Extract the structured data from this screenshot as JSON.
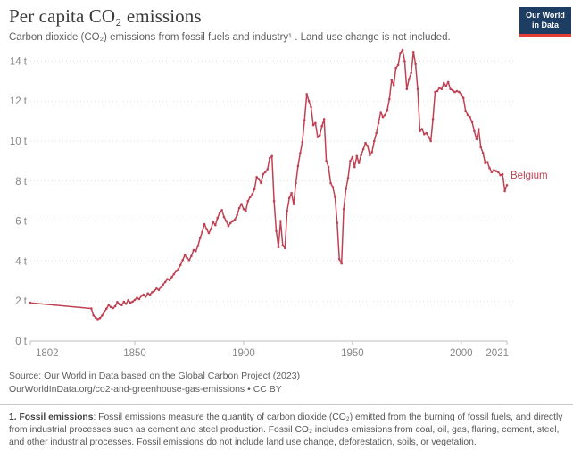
{
  "header": {
    "title": "Per capita CO₂ emissions",
    "subtitle": "Carbon dioxide (CO₂) emissions from fossil fuels and industry¹ . Land use change is not included."
  },
  "logo": {
    "line1": "Our World",
    "line2": "in Data"
  },
  "chart_data": {
    "type": "line",
    "title": "Per capita CO₂ emissions",
    "entity_label": "Belgium",
    "unit": "t",
    "xlabel": "",
    "ylabel": "",
    "xlim": [
      1802,
      2021
    ],
    "ylim": [
      0,
      14
    ],
    "yticks": [
      0,
      2,
      4,
      6,
      8,
      10,
      12,
      14
    ],
    "ytick_suffix": " t",
    "xticks": [
      1802,
      1850,
      1900,
      1950,
      2000,
      2021
    ],
    "grid": "dotted-horizontal",
    "legend_position": "end-of-line-label",
    "series": [
      {
        "name": "Belgium",
        "color": "#bf4254",
        "points": [
          [
            1802,
            1.91
          ],
          [
            1830,
            1.63
          ],
          [
            1831,
            1.28
          ],
          [
            1832,
            1.17
          ],
          [
            1833,
            1.1
          ],
          [
            1834,
            1.15
          ],
          [
            1835,
            1.28
          ],
          [
            1836,
            1.46
          ],
          [
            1837,
            1.62
          ],
          [
            1838,
            1.8
          ],
          [
            1839,
            1.7
          ],
          [
            1840,
            1.65
          ],
          [
            1841,
            1.74
          ],
          [
            1842,
            1.95
          ],
          [
            1843,
            1.84
          ],
          [
            1844,
            1.8
          ],
          [
            1845,
            1.96
          ],
          [
            1846,
            1.86
          ],
          [
            1847,
            2.04
          ],
          [
            1848,
            1.92
          ],
          [
            1849,
            1.97
          ],
          [
            1850,
            2.06
          ],
          [
            1851,
            2.16
          ],
          [
            1852,
            2.1
          ],
          [
            1853,
            2.26
          ],
          [
            1854,
            2.32
          ],
          [
            1855,
            2.22
          ],
          [
            1856,
            2.38
          ],
          [
            1857,
            2.32
          ],
          [
            1858,
            2.44
          ],
          [
            1859,
            2.52
          ],
          [
            1860,
            2.62
          ],
          [
            1861,
            2.56
          ],
          [
            1862,
            2.7
          ],
          [
            1863,
            2.82
          ],
          [
            1864,
            2.95
          ],
          [
            1865,
            3.1
          ],
          [
            1866,
            3.05
          ],
          [
            1867,
            3.2
          ],
          [
            1868,
            3.35
          ],
          [
            1869,
            3.5
          ],
          [
            1870,
            3.6
          ],
          [
            1871,
            3.8
          ],
          [
            1872,
            4.05
          ],
          [
            1873,
            4.3
          ],
          [
            1874,
            4.15
          ],
          [
            1875,
            4.05
          ],
          [
            1876,
            4.25
          ],
          [
            1877,
            4.55
          ],
          [
            1878,
            4.5
          ],
          [
            1879,
            4.75
          ],
          [
            1880,
            5.15
          ],
          [
            1881,
            5.45
          ],
          [
            1882,
            5.85
          ],
          [
            1883,
            5.6
          ],
          [
            1884,
            5.4
          ],
          [
            1885,
            5.6
          ],
          [
            1886,
            5.95
          ],
          [
            1887,
            5.8
          ],
          [
            1888,
            6.15
          ],
          [
            1889,
            6.4
          ],
          [
            1890,
            6.55
          ],
          [
            1891,
            6.2
          ],
          [
            1892,
            6.0
          ],
          [
            1893,
            5.75
          ],
          [
            1894,
            5.9
          ],
          [
            1895,
            6.0
          ],
          [
            1896,
            6.08
          ],
          [
            1897,
            6.3
          ],
          [
            1898,
            6.65
          ],
          [
            1899,
            6.85
          ],
          [
            1900,
            6.6
          ],
          [
            1901,
            6.5
          ],
          [
            1902,
            7.0
          ],
          [
            1903,
            7.2
          ],
          [
            1904,
            7.35
          ],
          [
            1905,
            7.6
          ],
          [
            1906,
            8.2
          ],
          [
            1907,
            8.1
          ],
          [
            1908,
            7.9
          ],
          [
            1909,
            8.35
          ],
          [
            1910,
            8.45
          ],
          [
            1911,
            8.6
          ],
          [
            1912,
            9.15
          ],
          [
            1913,
            9.25
          ],
          [
            1914,
            7.0
          ],
          [
            1915,
            5.5
          ],
          [
            1916,
            4.7
          ],
          [
            1917,
            6.0
          ],
          [
            1918,
            4.78
          ],
          [
            1919,
            4.65
          ],
          [
            1920,
            6.5
          ],
          [
            1921,
            7.15
          ],
          [
            1922,
            7.4
          ],
          [
            1923,
            6.85
          ],
          [
            1924,
            7.9
          ],
          [
            1925,
            8.75
          ],
          [
            1926,
            9.4
          ],
          [
            1927,
            9.95
          ],
          [
            1928,
            11.05
          ],
          [
            1929,
            12.35
          ],
          [
            1930,
            12.0
          ],
          [
            1931,
            11.7
          ],
          [
            1932,
            10.8
          ],
          [
            1933,
            10.9
          ],
          [
            1934,
            10.2
          ],
          [
            1935,
            10.3
          ],
          [
            1936,
            10.75
          ],
          [
            1937,
            11.1
          ],
          [
            1938,
            9.0
          ],
          [
            1939,
            8.7
          ],
          [
            1940,
            7.9
          ],
          [
            1941,
            7.7
          ],
          [
            1942,
            7.2
          ],
          [
            1943,
            5.9
          ],
          [
            1944,
            4.1
          ],
          [
            1945,
            3.88
          ],
          [
            1946,
            6.6
          ],
          [
            1947,
            7.6
          ],
          [
            1948,
            8.15
          ],
          [
            1949,
            9.0
          ],
          [
            1950,
            9.2
          ],
          [
            1951,
            8.7
          ],
          [
            1952,
            9.25
          ],
          [
            1953,
            8.9
          ],
          [
            1954,
            9.3
          ],
          [
            1955,
            9.6
          ],
          [
            1956,
            9.9
          ],
          [
            1957,
            9.75
          ],
          [
            1958,
            9.3
          ],
          [
            1959,
            9.45
          ],
          [
            1960,
            10.0
          ],
          [
            1961,
            10.4
          ],
          [
            1962,
            10.9
          ],
          [
            1963,
            11.45
          ],
          [
            1964,
            11.2
          ],
          [
            1965,
            11.3
          ],
          [
            1966,
            11.55
          ],
          [
            1967,
            12.1
          ],
          [
            1968,
            13.05
          ],
          [
            1969,
            12.8
          ],
          [
            1970,
            13.65
          ],
          [
            1971,
            13.8
          ],
          [
            1972,
            14.4
          ],
          [
            1973,
            14.55
          ],
          [
            1974,
            14.0
          ],
          [
            1975,
            12.6
          ],
          [
            1976,
            13.1
          ],
          [
            1977,
            13.4
          ],
          [
            1978,
            14.45
          ],
          [
            1979,
            13.85
          ],
          [
            1980,
            12.6
          ],
          [
            1981,
            10.5
          ],
          [
            1982,
            10.6
          ],
          [
            1983,
            10.35
          ],
          [
            1984,
            10.4
          ],
          [
            1985,
            10.2
          ],
          [
            1986,
            10.0
          ],
          [
            1987,
            11.1
          ],
          [
            1988,
            12.45
          ],
          [
            1989,
            12.5
          ],
          [
            1990,
            12.65
          ],
          [
            1991,
            12.6
          ],
          [
            1992,
            12.9
          ],
          [
            1993,
            12.75
          ],
          [
            1994,
            12.95
          ],
          [
            1995,
            12.6
          ],
          [
            1996,
            12.55
          ],
          [
            1997,
            12.45
          ],
          [
            1998,
            12.5
          ],
          [
            1999,
            12.45
          ],
          [
            2000,
            12.35
          ],
          [
            2001,
            12.15
          ],
          [
            2002,
            11.5
          ],
          [
            2003,
            11.3
          ],
          [
            2004,
            11.2
          ],
          [
            2005,
            10.95
          ],
          [
            2006,
            10.5
          ],
          [
            2007,
            10.1
          ],
          [
            2008,
            10.6
          ],
          [
            2009,
            9.7
          ],
          [
            2010,
            9.4
          ],
          [
            2011,
            8.9
          ],
          [
            2012,
            8.95
          ],
          [
            2013,
            8.65
          ],
          [
            2014,
            8.45
          ],
          [
            2015,
            8.55
          ],
          [
            2016,
            8.5
          ],
          [
            2017,
            8.45
          ],
          [
            2018,
            8.3
          ],
          [
            2019,
            8.35
          ],
          [
            2020,
            7.5
          ],
          [
            2021,
            7.8
          ]
        ]
      }
    ]
  },
  "footer": {
    "source": "Source: Our World in Data based on the Global Carbon Project (2023)",
    "url": "OurWorldInData.org/co2-and-greenhouse-gas-emissions",
    "license": " • CC BY"
  },
  "note": {
    "label": "1. Fossil emissions",
    "text": ": Fossil emissions measure the quantity of carbon dioxide (CO₂) emitted from the burning of fossil fuels, and directly from industrial processes such as cement and steel production. Fossil CO₂ includes emissions from coal, oil, gas, flaring, cement, steel, and other industrial processes. Fossil emissions do not include land use change, deforestation, soils, or vegetation."
  },
  "colors": {
    "line": "#bf4254",
    "grid": "#d9d9d9",
    "axis": "#bdbdbd",
    "tick_label": "#878787",
    "logo_bg": "#1d3d63",
    "logo_bar": "#e63e36"
  }
}
